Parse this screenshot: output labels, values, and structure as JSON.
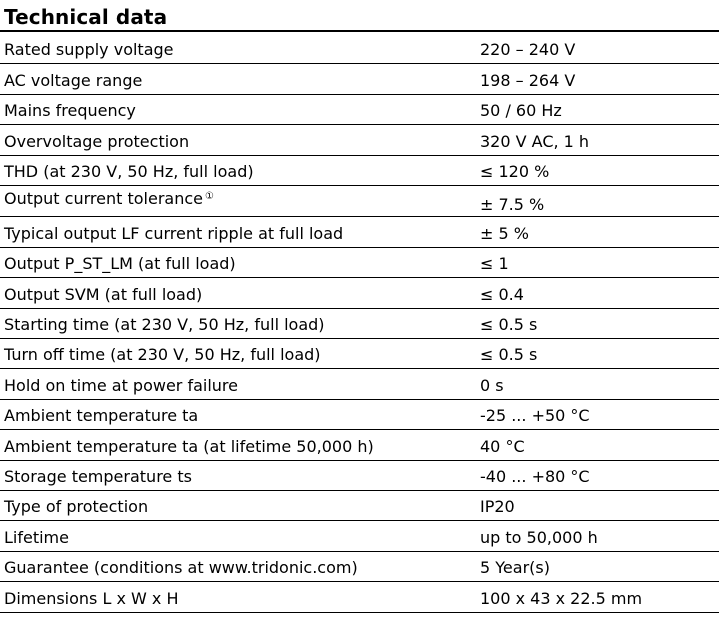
{
  "title": "Technical data",
  "rows": [
    {
      "label": "Rated supply voltage",
      "value": "220 – 240 V"
    },
    {
      "label": "AC voltage range",
      "value": "198 – 264 V"
    },
    {
      "label": "Mains frequency",
      "value": "50 / 60 Hz"
    },
    {
      "label": "Overvoltage protection",
      "value": "320 V AC, 1 h"
    },
    {
      "label": "THD (at 230 V, 50 Hz, full load)",
      "value": "≤ 120 %"
    },
    {
      "label": "Output current tolerance",
      "note": "①",
      "value": "± 7.5 %"
    },
    {
      "label": "Typical output LF current ripple at full load",
      "value": "± 5 %"
    },
    {
      "label": "Output P_ST_LM (at full load)",
      "value": "≤ 1"
    },
    {
      "label": "Output SVM (at full load)",
      "value": "≤ 0.4"
    },
    {
      "label": "Starting time (at 230 V, 50 Hz, full load)",
      "value": "≤ 0.5 s"
    },
    {
      "label": "Turn off time (at 230 V, 50 Hz, full load)",
      "value": "≤ 0.5 s"
    },
    {
      "label": "Hold on time at power failure",
      "value": "0 s"
    },
    {
      "label": "Ambient temperature ta",
      "value": "-25 ... +50 °C"
    },
    {
      "label": "Ambient temperature ta (at lifetime 50,000 h)",
      "value": "40 °C"
    },
    {
      "label": "Storage temperature ts",
      "value": "-40 ... +80 °C"
    },
    {
      "label": "Type of protection",
      "value": "IP20"
    },
    {
      "label": "Lifetime",
      "value": "up to 50,000 h"
    },
    {
      "label": "Guarantee (conditions at www.tridonic.com)",
      "value": "5 Year(s)"
    },
    {
      "label": "Dimensions L x W x H",
      "value": "100 x 43 x 22.5 mm"
    }
  ]
}
